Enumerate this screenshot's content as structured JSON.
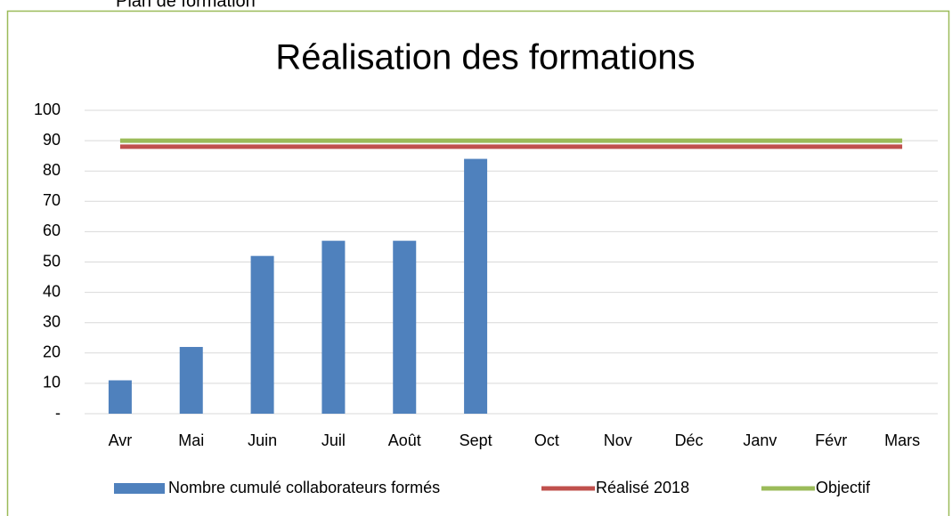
{
  "caption": "Plan de formation",
  "chart_data": {
    "type": "bar",
    "title": "Réalisation des formations",
    "categories": [
      "Avr",
      "Mai",
      "Juin",
      "Juil",
      "Août",
      "Sept",
      "Oct",
      "Nov",
      "Déc",
      "Janv",
      "Févr",
      "Mars"
    ],
    "series": [
      {
        "name": "Nombre cumulé collaborateurs formés",
        "type": "bar",
        "color": "#4f81bd",
        "values": [
          11,
          22,
          52,
          57,
          57,
          84,
          null,
          null,
          null,
          null,
          null,
          null
        ]
      },
      {
        "name": "Réalisé 2018",
        "type": "line",
        "color": "#c0504d",
        "values": [
          88,
          88,
          88,
          88,
          88,
          88,
          88,
          88,
          88,
          88,
          88,
          88
        ]
      },
      {
        "name": "Objectif",
        "type": "line",
        "color": "#9bbb59",
        "values": [
          90,
          90,
          90,
          90,
          90,
          90,
          90,
          90,
          90,
          90,
          90,
          90
        ]
      }
    ],
    "ylim": [
      0,
      100
    ],
    "yticks": [
      {
        "value": 0,
        "label": "-"
      },
      10,
      20,
      30,
      40,
      50,
      60,
      70,
      80,
      90,
      100
    ],
    "grid": true,
    "legend": "bottom"
  }
}
